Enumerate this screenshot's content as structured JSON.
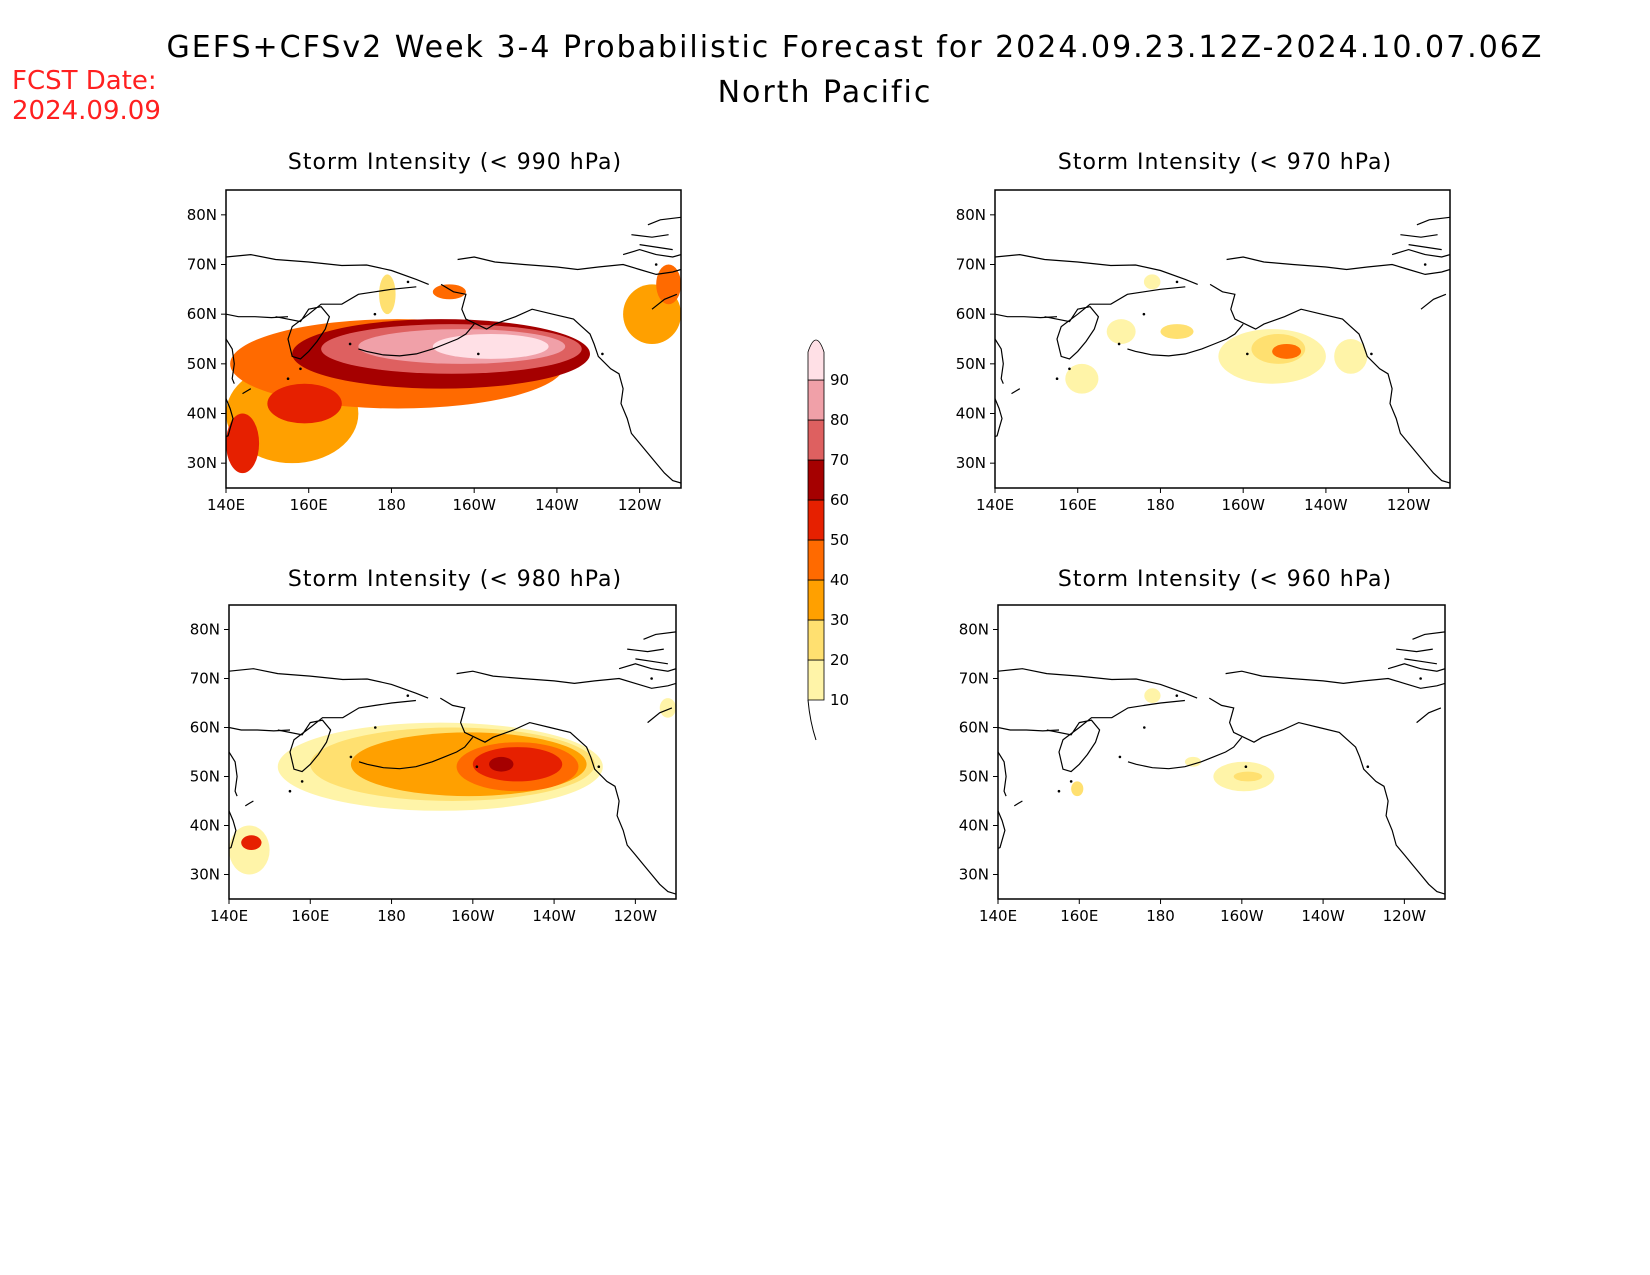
{
  "header": {
    "title_line1": "GEFS+CFSv2 Week 3-4 Probabilistic Forecast for 2024.09.23.12Z-2024.10.07.06Z",
    "title_line2": "North Pacific",
    "fcst_label": "FCST Date:",
    "fcst_date": "2024.09.09"
  },
  "panels": [
    {
      "id": "p990",
      "title": "Storm Intensity (< 990 hPa)"
    },
    {
      "id": "p970",
      "title": "Storm Intensity (< 970 hPa)"
    },
    {
      "id": "p980",
      "title": "Storm Intensity (< 980 hPa)"
    },
    {
      "id": "p960",
      "title": "Storm Intensity (< 960 hPa)"
    }
  ],
  "axes": {
    "lon_ticks": [
      "140E",
      "160E",
      "180",
      "160W",
      "140W",
      "120W"
    ],
    "lat_ticks": [
      "80N",
      "70N",
      "60N",
      "50N",
      "40N",
      "30N"
    ],
    "lon_range_deg_east": [
      140,
      250
    ],
    "lat_range_deg": [
      25,
      85
    ]
  },
  "colorbar": {
    "levels": [
      "10",
      "20",
      "30",
      "40",
      "50",
      "60",
      "70",
      "80",
      "90"
    ],
    "colors": [
      "#fff4a8",
      "#ffe070",
      "#ffa000",
      "#ff6a00",
      "#e62000",
      "#a50000",
      "#de6060",
      "#f0a0a8",
      "#ffe0e6"
    ]
  },
  "chart_data": [
    {
      "type": "heatmap",
      "title": "Storm Intensity (< 990 hPa)",
      "units": "probability (%)",
      "features": [
        {
          "lon": 180,
          "lat": 52,
          "prob": 70
        },
        {
          "lon": 205,
          "lat": 52,
          "prob": 88
        },
        {
          "lon": 165,
          "lat": 48,
          "prob": 60
        },
        {
          "lon": 145,
          "lat": 38,
          "prob": 45
        },
        {
          "lon": 242,
          "lat": 62,
          "prob": 30
        }
      ]
    },
    {
      "type": "heatmap",
      "title": "Storm Intensity (< 970 hPa)",
      "units": "probability (%)",
      "features": [
        {
          "lon": 210,
          "lat": 52,
          "prob": 45
        },
        {
          "lon": 160,
          "lat": 47,
          "prob": 15
        }
      ]
    },
    {
      "type": "heatmap",
      "title": "Storm Intensity (< 980 hPa)",
      "units": "probability (%)",
      "features": [
        {
          "lon": 208,
          "lat": 53,
          "prob": 60
        },
        {
          "lon": 185,
          "lat": 52,
          "prob": 35
        },
        {
          "lon": 170,
          "lat": 47,
          "prob": 30
        }
      ]
    },
    {
      "type": "heatmap",
      "title": "Storm Intensity (< 960 hPa)",
      "units": "probability (%)",
      "features": [
        {
          "lon": 160,
          "lat": 48,
          "prob": 25
        },
        {
          "lon": 200,
          "lat": 50,
          "prob": 20
        }
      ]
    }
  ]
}
